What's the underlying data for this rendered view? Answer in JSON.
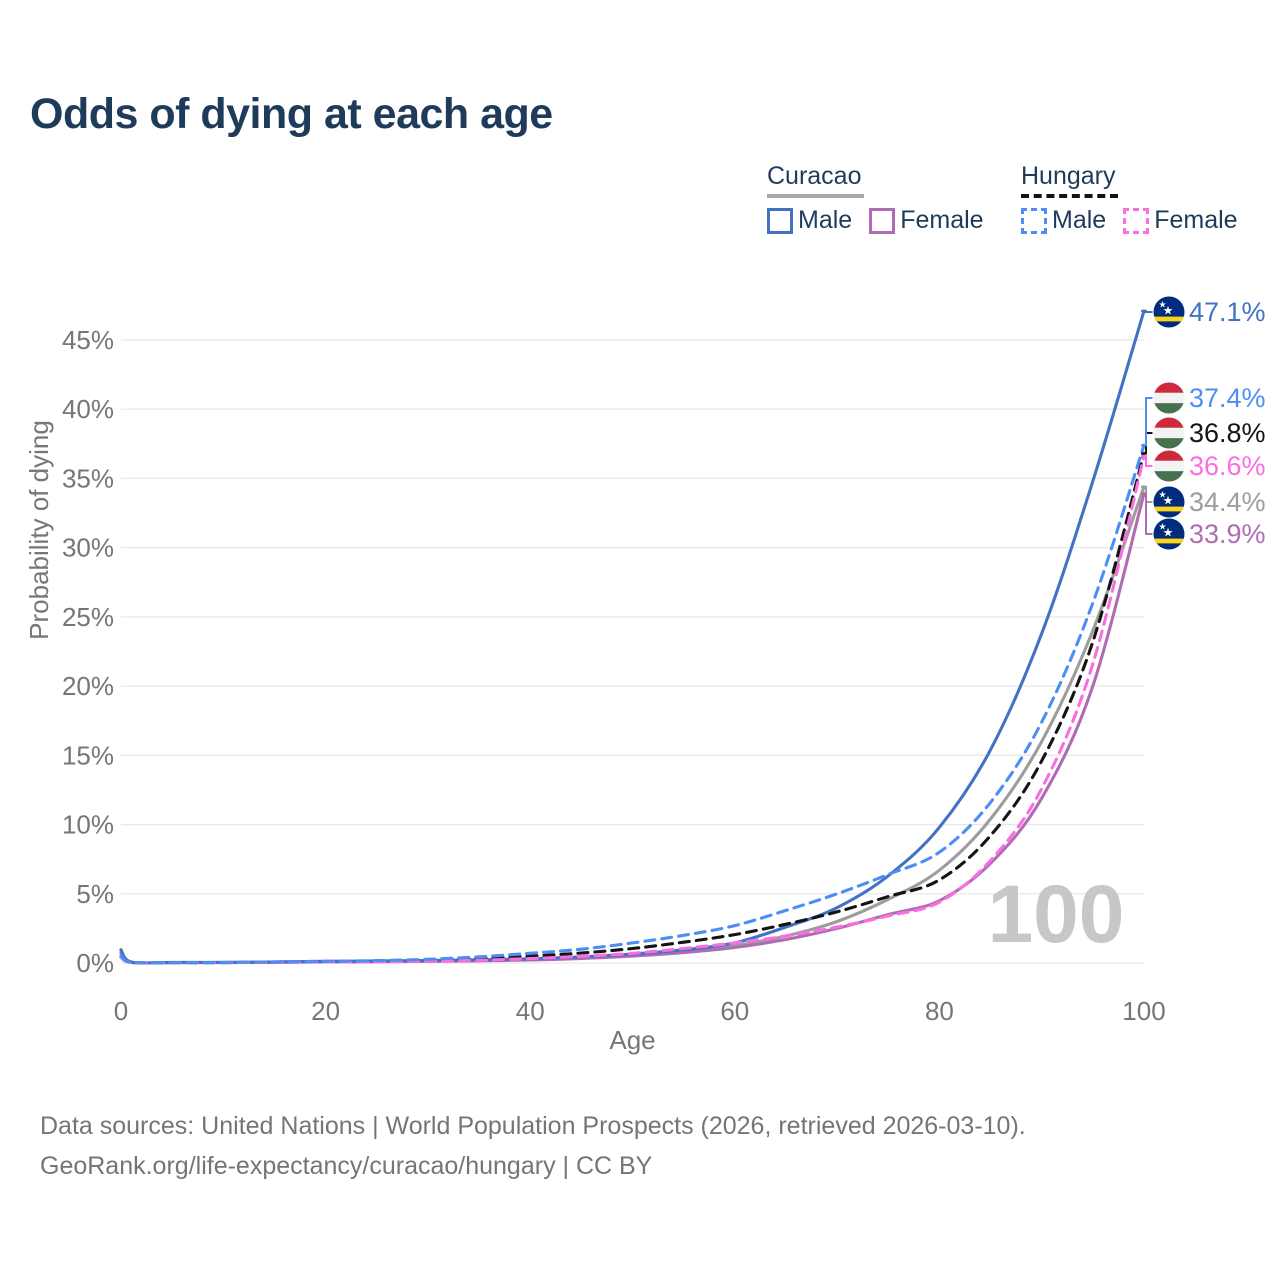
{
  "title": "Odds of dying at each age",
  "watermark_age": "100",
  "colors": {
    "title_text": "#1f3b5c",
    "axis_text": "#767676",
    "grid": "#e8e8e8",
    "watermark": "#c7c7c7",
    "curacao_underline": "#a8a8a8",
    "hungary_underline": "#141414"
  },
  "legend": {
    "curacao": {
      "label": "Curacao",
      "male": "Male",
      "female": "Female"
    },
    "hungary": {
      "label": "Hungary",
      "male": "Male",
      "female": "Female"
    }
  },
  "footer": {
    "line1": "Data sources: United Nations | World Population Prospects (2026, retrieved 2026-03-10).",
    "line2": "GeoRank.org/life-expectancy/curacao/hungary | CC BY"
  },
  "chart_data": {
    "type": "line",
    "title": "Odds of dying at each age",
    "xlabel": "Age",
    "ylabel": "Probability of dying",
    "xlim": [
      0,
      100
    ],
    "ylim_percent": [
      0,
      47.5
    ],
    "x_ticks": [
      0,
      20,
      40,
      60,
      80,
      100
    ],
    "y_ticks_percent": [
      0,
      5,
      10,
      15,
      20,
      25,
      30,
      35,
      40,
      45
    ],
    "y_tick_suffix": "%",
    "grid": true,
    "legend_position": "top-right",
    "hovered_age_label": "100",
    "ages": [
      0,
      1,
      5,
      10,
      15,
      20,
      25,
      30,
      35,
      40,
      45,
      50,
      55,
      60,
      65,
      70,
      75,
      80,
      85,
      90,
      95,
      100
    ],
    "series": [
      {
        "id": "cw_total",
        "name": "Curacao (both sexes)",
        "country": "Curacao",
        "sex": "both",
        "line": "solid",
        "color": "#9d9d9d",
        "flag": "curacao",
        "end_label": "34.4%",
        "values": [
          0.85,
          0.06,
          0.03,
          0.04,
          0.07,
          0.1,
          0.12,
          0.15,
          0.19,
          0.26,
          0.38,
          0.55,
          0.82,
          1.25,
          1.95,
          3.0,
          4.6,
          6.7,
          10.4,
          16.0,
          24.0,
          34.4
        ]
      },
      {
        "id": "cw_female",
        "name": "Curacao Female",
        "country": "Curacao",
        "sex": "female",
        "line": "solid",
        "color": "#b06cb3",
        "flag": "curacao",
        "end_label": "33.9%",
        "values": [
          0.7,
          0.05,
          0.03,
          0.03,
          0.05,
          0.07,
          0.09,
          0.12,
          0.16,
          0.22,
          0.33,
          0.5,
          0.75,
          1.12,
          1.7,
          2.5,
          3.5,
          4.5,
          7.2,
          11.9,
          20.0,
          33.9
        ]
      },
      {
        "id": "cw_male",
        "name": "Curacao Male",
        "country": "Curacao",
        "sex": "male",
        "line": "solid",
        "color": "#4372c4",
        "flag": "curacao",
        "end_label": "47.1%",
        "values": [
          0.95,
          0.07,
          0.04,
          0.04,
          0.08,
          0.12,
          0.15,
          0.18,
          0.23,
          0.3,
          0.45,
          0.65,
          0.95,
          1.45,
          2.6,
          4.0,
          6.3,
          9.8,
          15.4,
          23.8,
          34.8,
          47.1
        ]
      },
      {
        "id": "hu_total",
        "name": "Hungary (both sexes)",
        "country": "Hungary",
        "sex": "both",
        "line": "dashed",
        "color": "#141414",
        "flag": "hungary",
        "end_label": "36.8%",
        "values": [
          0.45,
          0.04,
          0.03,
          0.03,
          0.06,
          0.09,
          0.13,
          0.2,
          0.33,
          0.5,
          0.72,
          1.05,
          1.5,
          2.05,
          2.8,
          3.7,
          4.8,
          6.0,
          9.2,
          14.6,
          23.2,
          36.8
        ]
      },
      {
        "id": "hu_female",
        "name": "Hungary Female",
        "country": "Hungary",
        "sex": "female",
        "line": "dashed",
        "color": "#fa6ee2",
        "flag": "hungary",
        "end_label": "36.6%",
        "values": [
          0.4,
          0.04,
          0.02,
          0.03,
          0.05,
          0.07,
          0.09,
          0.13,
          0.2,
          0.32,
          0.48,
          0.7,
          1.05,
          1.45,
          1.95,
          2.6,
          3.4,
          4.4,
          7.4,
          12.6,
          21.6,
          36.6
        ]
      },
      {
        "id": "hu_male",
        "name": "Hungary Male",
        "country": "Hungary",
        "sex": "male",
        "line": "dashed",
        "color": "#4d8ef5",
        "flag": "hungary",
        "end_label": "37.4%",
        "values": [
          0.5,
          0.05,
          0.03,
          0.04,
          0.08,
          0.12,
          0.17,
          0.27,
          0.45,
          0.7,
          1.0,
          1.45,
          2.0,
          2.7,
          3.8,
          5.0,
          6.4,
          8.0,
          11.6,
          17.4,
          26.0,
          37.4
        ]
      }
    ],
    "flag_colors": {
      "curacao": {
        "field": "#002b7f",
        "stripe": "#f9d616",
        "stars": "#ffffff"
      },
      "hungary": {
        "red": "#cd2a3e",
        "white": "#f3f3f3",
        "green": "#477050"
      }
    }
  }
}
